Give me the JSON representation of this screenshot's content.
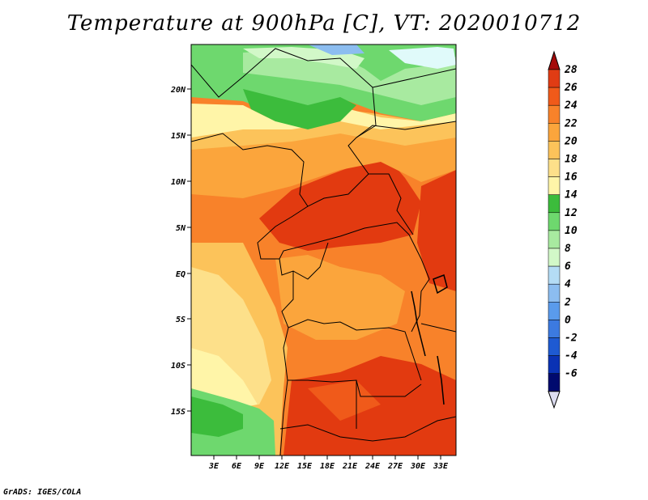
{
  "title": "Temperature at 900hPa [C], VT: 2020010712",
  "credit": "GrADS: IGES/COLA",
  "map": {
    "lon_labels": [
      "3E",
      "6E",
      "9E",
      "12E",
      "15E",
      "18E",
      "21E",
      "24E",
      "27E",
      "30E",
      "33E"
    ],
    "lat_labels": [
      "20N",
      "15N",
      "10N",
      "5N",
      "EQ",
      "5S",
      "10S",
      "15S"
    ],
    "colors": {
      "green_dark": "#3cbc3c",
      "green": "#6ed86e",
      "green_light": "#a8eaa0",
      "pale_green": "#d2f8c8",
      "cyan": "#e0fafa",
      "pale_yellow": "#fff5a8",
      "light_orange": "#fde08a",
      "orange_light": "#fcc35a",
      "orange": "#fba53c",
      "orange_deep": "#f8822a",
      "red_orange": "#f05a1a",
      "red": "#e23a10"
    }
  },
  "colorbar": {
    "labels": [
      "28",
      "26",
      "24",
      "22",
      "20",
      "18",
      "16",
      "14",
      "12",
      "10",
      "8",
      "6",
      "4",
      "2",
      "0",
      "-2",
      "-4",
      "-6"
    ],
    "colors": [
      "#a50a0a",
      "#e03c14",
      "#f05a1a",
      "#f8822a",
      "#fba53c",
      "#fcc35a",
      "#fde08a",
      "#fff5a8",
      "#3cbc3c",
      "#6ed86e",
      "#a8eaa0",
      "#d2f8c8",
      "#b4dcf5",
      "#8cbdf0",
      "#5a9bec",
      "#3c7ae0",
      "#1e5ad2",
      "#0a32b4",
      "#000a6e"
    ],
    "under_color": "#dcdcf0"
  }
}
